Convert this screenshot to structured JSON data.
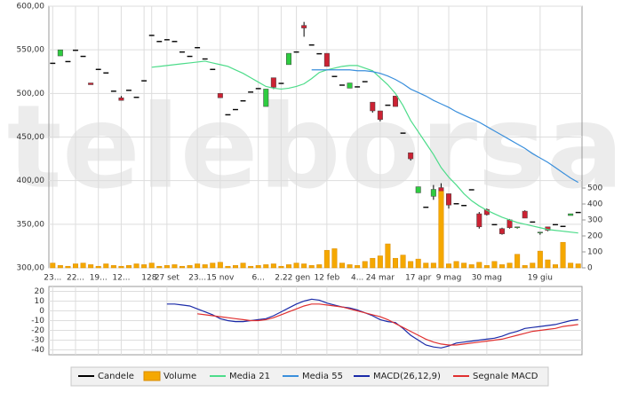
{
  "chart_data": [
    {
      "type": "candlestick",
      "watermark": "teleborsa",
      "categories": [
        "23...",
        null,
        null,
        "22...",
        null,
        null,
        "19...",
        null,
        null,
        "12...",
        null,
        null,
        "1",
        "28",
        null,
        "27 set",
        null,
        null,
        null,
        "23...",
        null,
        null,
        "15 nov",
        null,
        null,
        null,
        null,
        "6...",
        null,
        null,
        "2...",
        null,
        "22 gen",
        null,
        null,
        null,
        "12 feb",
        null,
        null,
        null,
        "4...",
        null,
        null,
        "24 mar",
        null,
        null,
        null,
        null,
        "17 apr",
        null,
        null,
        null,
        "9 mag",
        null,
        null,
        null,
        null,
        "30 mag",
        null,
        null,
        null,
        null,
        null,
        null,
        "19 giu",
        null,
        null,
        null,
        null,
        null
      ],
      "ylim": [
        300,
        600
      ],
      "yticks": [
        {
          "value": 300,
          "label": "300,00"
        },
        {
          "value": 350,
          "label": "350,00"
        },
        {
          "value": 400,
          "label": "400,00"
        },
        {
          "value": 450,
          "label": "450,00"
        },
        {
          "value": 500,
          "label": "500,00"
        },
        {
          "value": 550,
          "label": "550,00"
        },
        {
          "value": 600,
          "label": "600,00"
        }
      ],
      "y2lim": [
        0,
        500
      ],
      "y2ticks": [
        0,
        100,
        200,
        300,
        400,
        500
      ],
      "grid": true,
      "up_color": "#2ecc40",
      "down_color": "#cc2233",
      "series": [
        {
          "name": "Candele",
          "color": "#000000",
          "open": [
            535,
            543,
            537,
            550,
            543,
            512,
            528,
            524,
            503,
            495,
            504,
            496,
            515,
            567,
            560,
            562,
            560,
            548,
            543,
            553,
            540,
            528,
            500,
            476,
            482,
            492,
            502,
            506,
            485,
            518,
            512,
            533,
            548,
            578,
            556,
            546,
            546,
            520,
            510,
            506,
            508,
            514,
            490,
            480,
            487,
            497,
            455,
            432,
            386,
            370,
            382,
            392,
            385,
            374,
            372,
            390,
            362,
            367,
            350,
            345,
            355,
            346,
            365,
            353,
            340,
            347,
            350,
            348,
            360,
            364
          ],
          "high": [
            535,
            550,
            537,
            550,
            543,
            512,
            528,
            524,
            503,
            497,
            504,
            496,
            515,
            567,
            560,
            562,
            560,
            548,
            543,
            553,
            540,
            528,
            500,
            476,
            482,
            492,
            502,
            506,
            505,
            518,
            512,
            546,
            548,
            582,
            556,
            546,
            546,
            520,
            510,
            512,
            508,
            514,
            490,
            480,
            487,
            497,
            455,
            432,
            393,
            370,
            395,
            397,
            385,
            374,
            372,
            390,
            364,
            368,
            350,
            346,
            356,
            347,
            366,
            353,
            341,
            347,
            350,
            348,
            362,
            364
          ],
          "low": [
            535,
            543,
            537,
            550,
            543,
            510,
            528,
            524,
            503,
            492,
            504,
            496,
            515,
            567,
            560,
            562,
            560,
            548,
            543,
            553,
            540,
            528,
            495,
            476,
            482,
            492,
            502,
            506,
            485,
            505,
            512,
            533,
            548,
            565,
            556,
            546,
            531,
            520,
            510,
            506,
            508,
            514,
            478,
            468,
            487,
            485,
            455,
            423,
            386,
            370,
            378,
            378,
            368,
            374,
            372,
            390,
            345,
            360,
            350,
            338,
            345,
            345,
            357,
            353,
            338,
            342,
            350,
            348,
            360,
            364
          ],
          "close": [
            535,
            550,
            537,
            550,
            543,
            510,
            528,
            524,
            503,
            492,
            504,
            496,
            515,
            567,
            560,
            562,
            560,
            548,
            543,
            553,
            540,
            528,
            495,
            476,
            482,
            492,
            502,
            506,
            505,
            507,
            512,
            546,
            548,
            575,
            556,
            546,
            531,
            520,
            510,
            512,
            508,
            514,
            480,
            470,
            487,
            485,
            455,
            425,
            393,
            370,
            390,
            380,
            372,
            374,
            372,
            390,
            347,
            361,
            350,
            339,
            346,
            347,
            357,
            353,
            341,
            343,
            350,
            348,
            362,
            364
          ]
        },
        {
          "name": "Volume",
          "color": "#f5a800",
          "axis": "y2",
          "values": [
            30,
            15,
            10,
            25,
            30,
            20,
            10,
            25,
            15,
            10,
            15,
            25,
            20,
            30,
            10,
            15,
            20,
            10,
            15,
            25,
            20,
            30,
            35,
            10,
            15,
            30,
            10,
            15,
            20,
            25,
            10,
            20,
            30,
            25,
            15,
            20,
            110,
            120,
            30,
            20,
            15,
            40,
            60,
            75,
            150,
            60,
            80,
            40,
            55,
            30,
            30,
            480,
            25,
            40,
            30,
            20,
            35,
            15,
            40,
            20,
            30,
            85,
            15,
            30,
            105,
            50,
            20,
            160,
            30,
            25
          ]
        },
        {
          "name": "Media 21",
          "color": "#4ddc8a",
          "values": [
            null,
            null,
            null,
            null,
            null,
            null,
            null,
            null,
            null,
            null,
            null,
            null,
            null,
            530,
            531,
            532,
            533,
            534,
            535,
            536,
            537,
            535,
            533,
            531,
            527,
            523,
            518,
            513,
            508,
            506,
            505,
            506,
            508,
            511,
            517,
            524,
            527,
            529,
            531,
            532,
            532,
            529,
            526,
            518,
            510,
            500,
            486,
            469,
            456,
            443,
            430,
            415,
            404,
            395,
            385,
            377,
            371,
            366,
            362,
            358,
            355,
            352,
            350,
            348,
            346,
            344,
            343,
            342,
            341,
            340
          ]
        },
        {
          "name": "Media 55",
          "color": "#3a8fdc",
          "values": [
            null,
            null,
            null,
            null,
            null,
            null,
            null,
            null,
            null,
            null,
            null,
            null,
            null,
            null,
            null,
            null,
            null,
            null,
            null,
            null,
            null,
            null,
            null,
            null,
            null,
            null,
            null,
            null,
            null,
            null,
            null,
            null,
            null,
            null,
            527,
            527,
            527,
            527,
            527,
            527,
            526,
            526,
            525,
            523,
            520,
            516,
            511,
            505,
            501,
            497,
            492,
            488,
            484,
            479,
            475,
            471,
            467,
            462,
            457,
            452,
            447,
            442,
            437,
            431,
            426,
            421,
            415,
            409,
            403,
            398
          ]
        }
      ]
    },
    {
      "type": "line",
      "ylim": [
        -45,
        25
      ],
      "yticks": [
        20,
        10,
        0,
        -10,
        -20,
        -30,
        -40
      ],
      "grid": true,
      "series": [
        {
          "name": "MACD(26,12,9)",
          "color": "#1a2aa8",
          "values": [
            null,
            null,
            null,
            null,
            null,
            null,
            null,
            null,
            null,
            null,
            null,
            null,
            null,
            null,
            null,
            7,
            7,
            6,
            5,
            2,
            -1,
            -4,
            -8,
            -10,
            -11,
            -11,
            -10,
            -9,
            -8,
            -5,
            -1,
            3,
            7,
            10,
            12,
            11,
            8,
            6,
            4,
            3,
            1,
            -2,
            -5,
            -9,
            -11,
            -12,
            -18,
            -25,
            -30,
            -35,
            -37,
            -38,
            -36,
            -33,
            -32,
            -31,
            -30,
            -29,
            -28,
            -26,
            -23,
            -21,
            -18,
            -17,
            -16,
            -15,
            -14,
            -12,
            -10,
            -9
          ]
        },
        {
          "name": "Segnale MACD",
          "color": "#e03030",
          "values": [
            null,
            null,
            null,
            null,
            null,
            null,
            null,
            null,
            null,
            null,
            null,
            null,
            null,
            null,
            null,
            null,
            null,
            null,
            null,
            -3,
            -4,
            -5,
            -6,
            -7,
            -8,
            -9,
            -10,
            -10,
            -9,
            -7,
            -4,
            -1,
            2,
            5,
            7,
            7,
            6,
            5,
            4,
            2,
            0,
            -2,
            -4,
            -6,
            -9,
            -13,
            -17,
            -21,
            -25,
            -29,
            -32,
            -34,
            -35,
            -35,
            -34,
            -33,
            -32,
            -31,
            -30,
            -29,
            -27,
            -25,
            -23,
            -21,
            -20,
            -19,
            -18,
            -16,
            -15,
            -14
          ]
        }
      ]
    }
  ]
}
